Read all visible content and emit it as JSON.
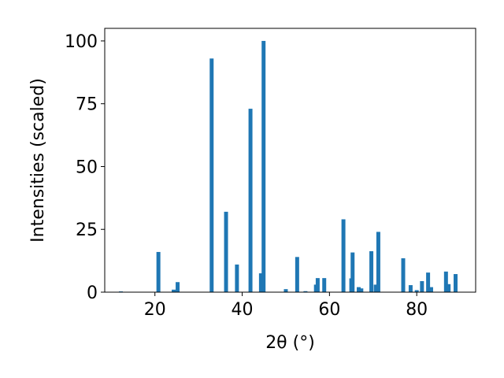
{
  "chart_data": {
    "type": "bar",
    "xlabel": "2θ (°)",
    "ylabel": "Intensities (scaled)",
    "xlim": [
      8.5,
      93.5
    ],
    "ylim": [
      0,
      105
    ],
    "x_ticks": [
      20,
      40,
      60,
      80
    ],
    "y_ticks": [
      0,
      25,
      50,
      75,
      100
    ],
    "bar_width": 0.9,
    "bar_color": "#1f77b4",
    "grid": false,
    "legend": "none",
    "x": [
      12.2,
      20.8,
      24.3,
      25.2,
      33.0,
      36.3,
      38.8,
      41.9,
      44.3,
      44.9,
      50.0,
      52.6,
      54.5,
      56.9,
      57.3,
      58.8,
      63.2,
      65.0,
      65.3,
      66.7,
      67.3,
      69.6,
      70.6,
      71.2,
      76.9,
      78.6,
      80.0,
      81.2,
      82.6,
      83.3,
      86.7,
      87.3,
      88.9
    ],
    "values": [
      0.3,
      16,
      1,
      4,
      93,
      32,
      11,
      73,
      7.5,
      100,
      1.2,
      14,
      0.4,
      3,
      5.6,
      5.6,
      29,
      5.5,
      15.8,
      2,
      1.5,
      16.3,
      3,
      24,
      13.5,
      2.8,
      0.8,
      4.4,
      7.8,
      2,
      8.2,
      3.2,
      7.2
    ]
  }
}
